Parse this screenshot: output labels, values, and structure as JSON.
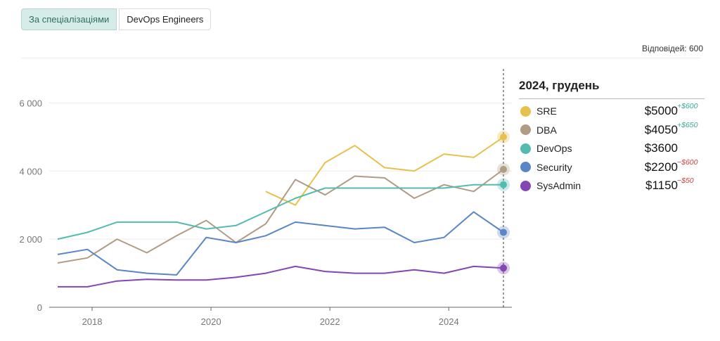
{
  "tabs": [
    {
      "label": "За спеціалізаціями",
      "active": true
    },
    {
      "label": "DevOps Engineers",
      "active": false
    }
  ],
  "responses_text": "Відповідей: 600",
  "legend": {
    "title": "2024, грудень",
    "items": [
      {
        "name": "SRE",
        "value": "$5000",
        "delta": "+$600",
        "sign": "pos",
        "color": "#e6c14d"
      },
      {
        "name": "DBA",
        "value": "$4050",
        "delta": "+$650",
        "sign": "pos",
        "color": "#b09c84"
      },
      {
        "name": "DevOps",
        "value": "$3600",
        "delta": "",
        "sign": "",
        "color": "#55bbb0"
      },
      {
        "name": "Security",
        "value": "$2200",
        "delta": "−$600",
        "sign": "neg",
        "color": "#5a86c5"
      },
      {
        "name": "SysAdmin",
        "value": "$1150",
        "delta": "−$50",
        "sign": "neg",
        "color": "#8445b5"
      }
    ]
  },
  "chart_data": {
    "type": "line",
    "xlim": [
      2017.4,
      2024.9
    ],
    "ylim": [
      0,
      7000
    ],
    "yticks": [
      0,
      2000,
      4000,
      6000
    ],
    "ytick_labels": [
      "0",
      "2 000",
      "4 000",
      "6 000"
    ],
    "xticks": [
      2018,
      2020,
      2022,
      2024
    ],
    "xtick_labels": [
      "2018",
      "2020",
      "2022",
      "2024"
    ],
    "grid": "horizontal",
    "highlight_x": 2024.92,
    "series": [
      {
        "name": "SRE",
        "color": "#e6c14d",
        "x": [
          2020.92,
          2021.42,
          2021.92,
          2022.42,
          2022.92,
          2023.42,
          2023.92,
          2024.42,
          2024.92
        ],
        "y": [
          3400,
          3000,
          4250,
          4750,
          4100,
          4000,
          4500,
          4400,
          5000
        ]
      },
      {
        "name": "DBA",
        "color": "#b09c84",
        "x": [
          2017.42,
          2017.92,
          2018.42,
          2018.92,
          2019.42,
          2019.92,
          2020.42,
          2020.92,
          2021.42,
          2021.92,
          2022.42,
          2022.92,
          2023.42,
          2023.92,
          2024.42,
          2024.92
        ],
        "y": [
          1300,
          1450,
          2000,
          1600,
          2100,
          2550,
          1900,
          2450,
          3750,
          3300,
          3850,
          3800,
          3200,
          3600,
          3400,
          4050
        ]
      },
      {
        "name": "DevOps",
        "color": "#55bbb0",
        "x": [
          2017.42,
          2017.92,
          2018.42,
          2018.92,
          2019.42,
          2019.92,
          2020.42,
          2020.92,
          2021.42,
          2021.92,
          2022.42,
          2022.92,
          2023.42,
          2023.92,
          2024.42,
          2024.92
        ],
        "y": [
          2000,
          2200,
          2500,
          2500,
          2500,
          2300,
          2400,
          2800,
          3200,
          3500,
          3500,
          3500,
          3500,
          3500,
          3600,
          3600
        ]
      },
      {
        "name": "Security",
        "color": "#5a86c5",
        "x": [
          2017.42,
          2017.92,
          2018.42,
          2018.92,
          2019.42,
          2019.92,
          2020.42,
          2020.92,
          2021.42,
          2021.92,
          2022.42,
          2022.92,
          2023.42,
          2023.92,
          2024.42,
          2024.92
        ],
        "y": [
          1550,
          1700,
          1100,
          1000,
          950,
          2050,
          1900,
          2100,
          2500,
          2400,
          2300,
          2350,
          1900,
          2050,
          2800,
          2200
        ]
      },
      {
        "name": "SysAdmin",
        "color": "#8445b5",
        "x": [
          2017.42,
          2017.92,
          2018.42,
          2018.92,
          2019.42,
          2019.92,
          2020.42,
          2020.92,
          2021.42,
          2021.92,
          2022.42,
          2022.92,
          2023.42,
          2023.92,
          2024.42,
          2024.92
        ],
        "y": [
          600,
          600,
          770,
          820,
          800,
          800,
          880,
          1000,
          1200,
          1050,
          1000,
          1000,
          1100,
          1000,
          1200,
          1150
        ]
      }
    ]
  }
}
